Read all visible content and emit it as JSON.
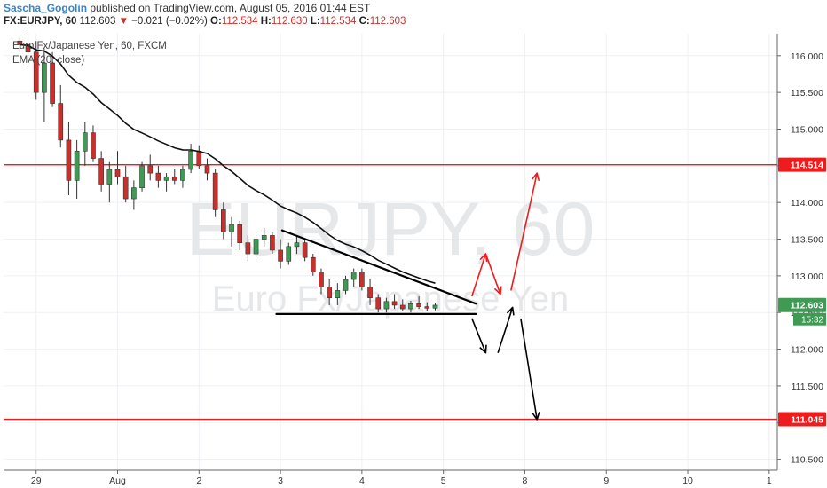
{
  "header": {
    "author": "Sascha_Gogolin",
    "published_text": "published on TradingView.com, August 05, 2016 01:44 EST",
    "symbol": "FX:EURJPY, 60",
    "last": "112.603",
    "change": "−0.021 (−0.02%)",
    "ohlc": [
      {
        "label": "O:",
        "value": "112.534"
      },
      {
        "label": "H:",
        "value": "112.630"
      },
      {
        "label": "L:",
        "value": "112.534"
      },
      {
        "label": "C:",
        "value": "112.603"
      }
    ]
  },
  "legend": {
    "title": "Euro Fx/Japanese Yen, 60, FXCM",
    "indicator": "EMA (20, close)"
  },
  "watermark": {
    "line1": "EURJPY, 60",
    "line2": "Euro Fx/Japanese Yen"
  },
  "colors": {
    "up": "#3f9a54",
    "down": "#c9302c",
    "level": "#ee1c1c",
    "grid": "#eef0f3",
    "current_price_bg": "#3f9a54"
  },
  "chart_data": {
    "type": "candlestick",
    "xlabel": "",
    "ylabel": "",
    "ylim": [
      110.35,
      116.3
    ],
    "time_axis": {
      "ticks": [
        {
          "label": "29",
          "t": 2
        },
        {
          "label": "Aug",
          "t": 12
        },
        {
          "label": "2",
          "t": 22
        },
        {
          "label": "3",
          "t": 32
        },
        {
          "label": "4",
          "t": 42
        },
        {
          "label": "5",
          "t": 52
        },
        {
          "label": "8",
          "t": 62
        },
        {
          "label": "9",
          "t": 72
        },
        {
          "label": "10",
          "t": 82
        },
        {
          "label": "1",
          "t": 92
        }
      ],
      "range": [
        -2,
        93
      ]
    },
    "y_ticks": [
      "116.000",
      "115.500",
      "115.000",
      "114.500",
      "114.000",
      "113.500",
      "113.000",
      "112.500",
      "112.000",
      "111.500",
      "111.000",
      "110.500"
    ],
    "levels": [
      {
        "value": 114.514,
        "label": "114.514"
      },
      {
        "value": 111.045,
        "label": "111.045"
      }
    ],
    "current_price": {
      "value": 112.603,
      "label": "112.603",
      "countdown": "15:32"
    },
    "ema_period": 20,
    "candles": [
      [
        116.2,
        116.25,
        116.05,
        116.15
      ],
      [
        116.15,
        116.3,
        115.85,
        116.05
      ],
      [
        116.05,
        116.2,
        115.4,
        115.5
      ],
      [
        115.5,
        116.1,
        115.1,
        115.9
      ],
      [
        115.9,
        116.05,
        115.3,
        115.35
      ],
      [
        115.35,
        115.6,
        114.75,
        114.85
      ],
      [
        114.85,
        115.1,
        114.1,
        114.3
      ],
      [
        114.3,
        114.85,
        114.05,
        114.7
      ],
      [
        114.7,
        115.1,
        114.5,
        114.95
      ],
      [
        114.95,
        115.05,
        114.55,
        114.6
      ],
      [
        114.6,
        114.7,
        114.15,
        114.25
      ],
      [
        114.25,
        114.55,
        114.0,
        114.45
      ],
      [
        114.45,
        114.7,
        114.25,
        114.35
      ],
      [
        114.35,
        114.5,
        114.0,
        114.05
      ],
      [
        114.05,
        114.3,
        113.9,
        114.2
      ],
      [
        114.2,
        114.55,
        114.15,
        114.5
      ],
      [
        114.5,
        114.65,
        114.3,
        114.4
      ],
      [
        114.4,
        114.5,
        114.2,
        114.3
      ],
      [
        114.3,
        114.4,
        114.15,
        114.35
      ],
      [
        114.35,
        114.45,
        114.25,
        114.3
      ],
      [
        114.3,
        114.5,
        114.2,
        114.45
      ],
      [
        114.45,
        114.8,
        114.4,
        114.7
      ],
      [
        114.7,
        114.78,
        114.45,
        114.5
      ],
      [
        114.5,
        114.6,
        114.3,
        114.4
      ],
      [
        114.4,
        114.45,
        113.8,
        113.9
      ],
      [
        113.9,
        114.0,
        113.5,
        113.6
      ],
      [
        113.6,
        113.8,
        113.4,
        113.7
      ],
      [
        113.7,
        113.75,
        113.35,
        113.45
      ],
      [
        113.45,
        113.55,
        113.2,
        113.3
      ],
      [
        113.3,
        113.6,
        113.25,
        113.5
      ],
      [
        113.5,
        113.65,
        113.4,
        113.55
      ],
      [
        113.55,
        113.6,
        113.3,
        113.35
      ],
      [
        113.35,
        113.5,
        113.1,
        113.2
      ],
      [
        113.2,
        113.45,
        113.15,
        113.4
      ],
      [
        113.4,
        113.55,
        113.3,
        113.45
      ],
      [
        113.45,
        113.5,
        113.2,
        113.25
      ],
      [
        113.25,
        113.3,
        113.0,
        113.05
      ],
      [
        113.05,
        113.1,
        112.75,
        112.85
      ],
      [
        112.85,
        112.95,
        112.6,
        112.7
      ],
      [
        112.7,
        112.9,
        112.6,
        112.8
      ],
      [
        112.8,
        113.0,
        112.75,
        112.95
      ],
      [
        112.95,
        113.1,
        112.85,
        113.05
      ],
      [
        113.05,
        113.1,
        112.8,
        112.85
      ],
      [
        112.85,
        112.95,
        112.6,
        112.7
      ],
      [
        112.7,
        112.75,
        112.5,
        112.55
      ],
      [
        112.55,
        112.7,
        112.5,
        112.65
      ],
      [
        112.65,
        112.75,
        112.55,
        112.6
      ],
      [
        112.6,
        112.68,
        112.52,
        112.55
      ],
      [
        112.55,
        112.66,
        112.5,
        112.62
      ],
      [
        112.62,
        112.72,
        112.55,
        112.58
      ],
      [
        112.58,
        112.64,
        112.52,
        112.56
      ],
      [
        112.56,
        112.63,
        112.53,
        112.6
      ]
    ],
    "drawings": {
      "triangle": {
        "upper": [
          [
            32.2,
            113.62
          ],
          [
            56.0,
            112.62
          ]
        ],
        "base": [
          [
            31.5,
            112.48
          ],
          [
            56.0,
            112.48
          ]
        ]
      },
      "red_arrows": [
        [
          [
            55.5,
            112.72
          ],
          [
            57.2,
            113.3
          ],
          [
            59.0,
            112.75
          ]
        ],
        [
          [
            60.3,
            112.8
          ],
          [
            63.5,
            114.4
          ]
        ]
      ],
      "black_arrows": [
        [
          [
            55.5,
            112.42
          ],
          [
            57.2,
            111.95
          ]
        ],
        [
          [
            58.7,
            111.95
          ],
          [
            60.5,
            112.57
          ]
        ],
        [
          [
            61.5,
            112.42
          ],
          [
            63.5,
            111.04
          ]
        ]
      ]
    }
  }
}
